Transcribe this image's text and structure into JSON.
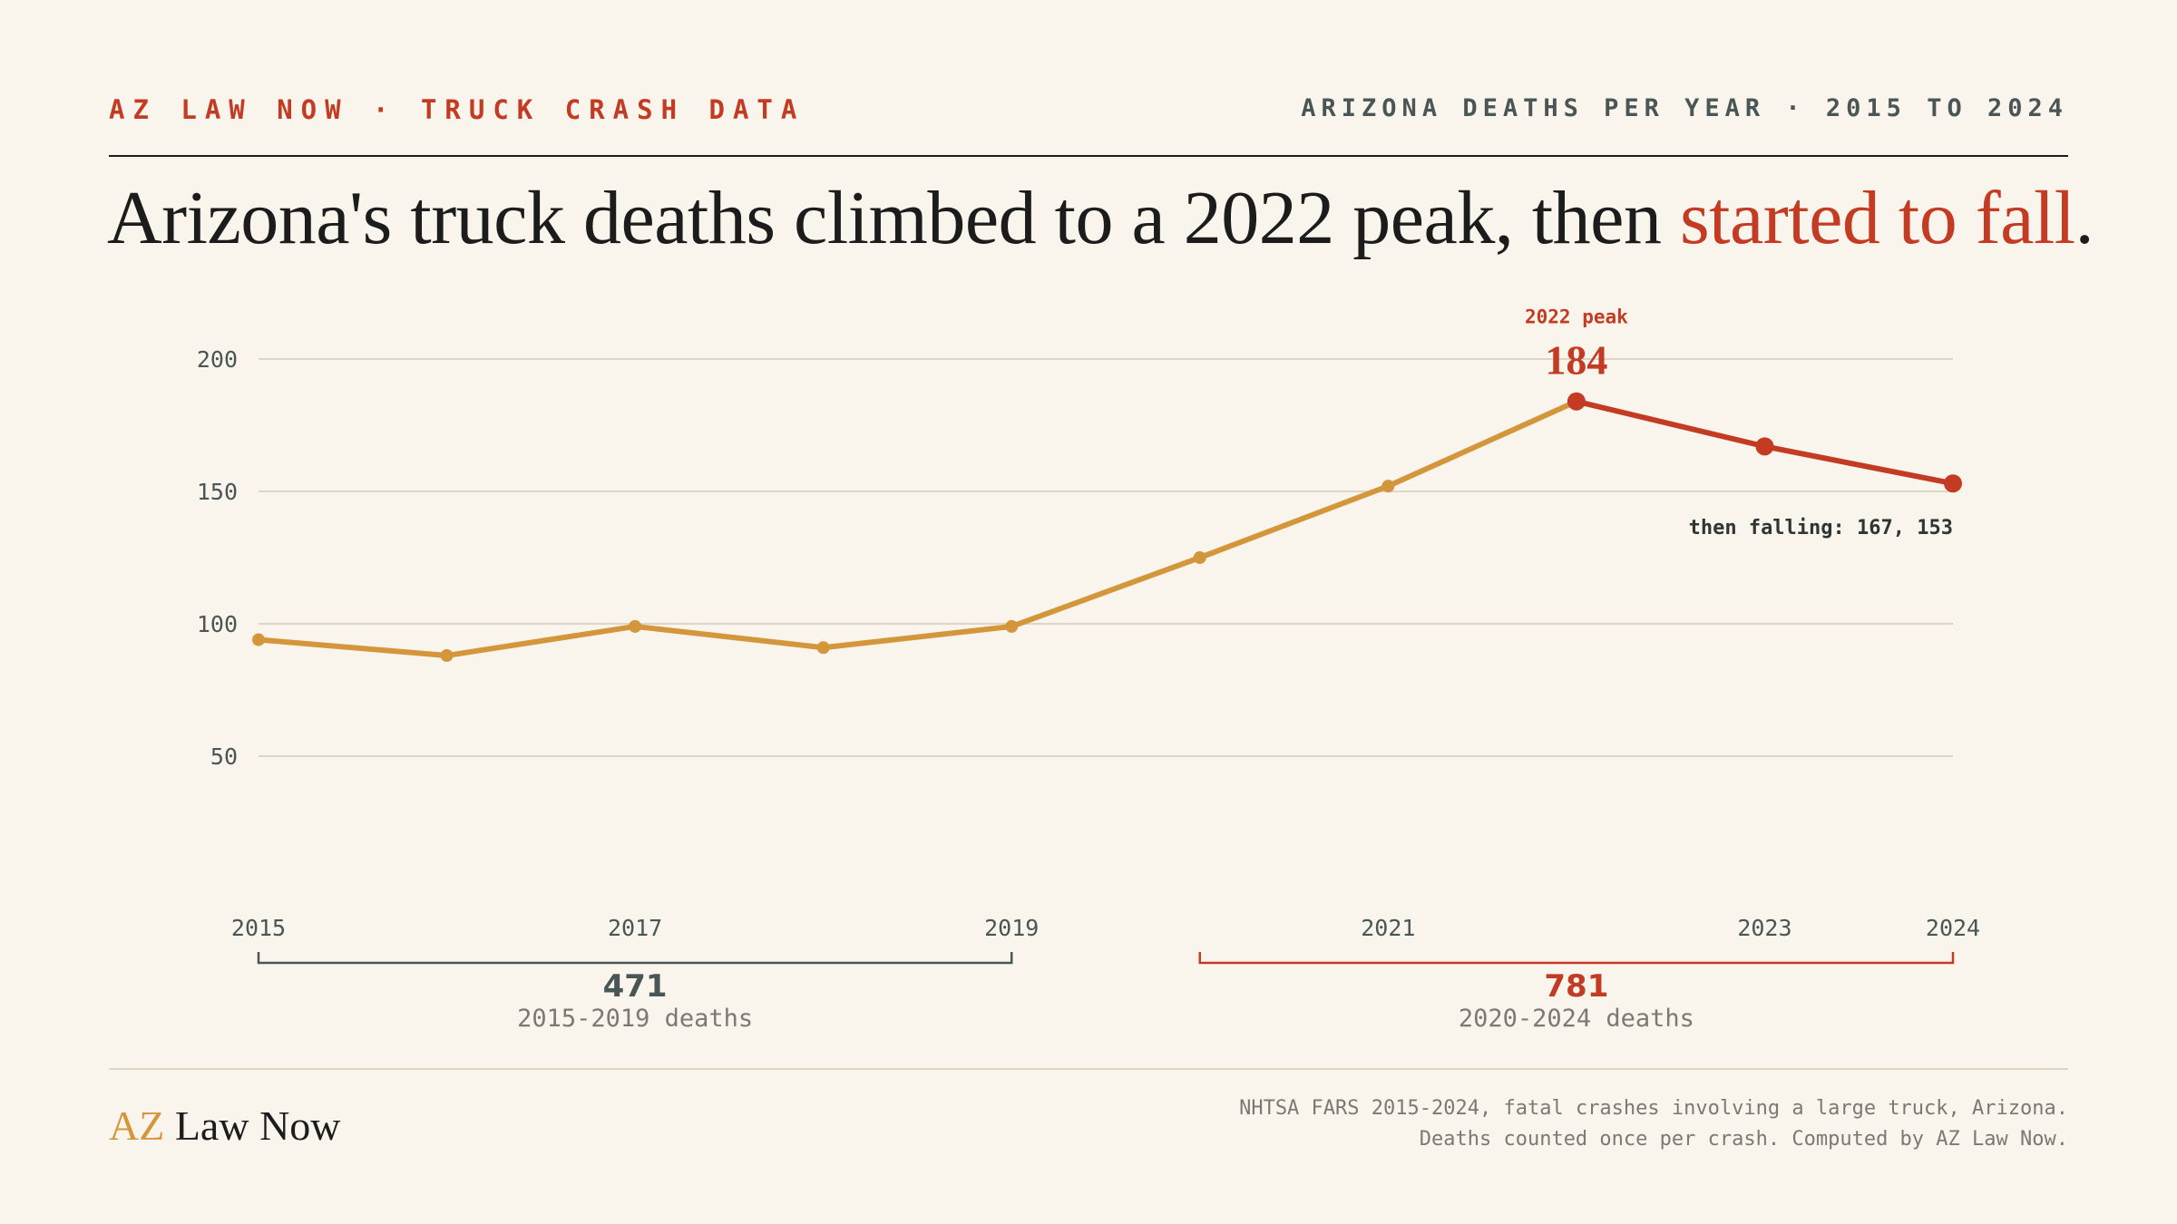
{
  "header": {
    "kicker_left": "AZ LAW NOW · TRUCK CRASH DATA",
    "kicker_right": "ARIZONA DEATHS PER YEAR · 2015 TO 2024"
  },
  "headline": {
    "main": "Arizona's truck deaths climbed to a 2022 peak, then ",
    "accent": "started to fall",
    "end": "."
  },
  "colors": {
    "background": "#faf5ec",
    "rising": "#d4963a",
    "falling": "#c23b22",
    "grid": "#ddd5c6",
    "ink": "#1c1c1c",
    "muted": "#4a5656"
  },
  "chart_data": {
    "type": "line",
    "title": "",
    "xlabel": "",
    "ylabel": "",
    "x": [
      2015,
      2016,
      2017,
      2018,
      2019,
      2020,
      2021,
      2022,
      2023,
      2024
    ],
    "values": [
      94,
      88,
      99,
      91,
      99,
      125,
      152,
      184,
      167,
      153
    ],
    "ylim": [
      50,
      200
    ],
    "yticks": [
      50,
      100,
      150,
      200
    ],
    "xtick_labels": [
      "2015",
      "2017",
      "2019",
      "2021",
      "2023",
      "2024"
    ],
    "grid": true,
    "legend": "none",
    "peak_annotation": {
      "year": "2022",
      "label": "2022 peak",
      "value": "184"
    },
    "falling_annotation": "then falling: 167, 153",
    "periods": [
      {
        "start": 2015,
        "end": 2019,
        "total": "471",
        "label": "2015-2019 deaths",
        "color": "#4a5656"
      },
      {
        "start": 2020,
        "end": 2024,
        "total": "781",
        "label": "2020-2024 deaths",
        "color": "#c23b22"
      }
    ]
  },
  "footer": {
    "logo_az": "AZ",
    "logo_rest": " Law Now",
    "source_line1": "NHTSA FARS 2015-2024, fatal crashes involving a large truck, Arizona.",
    "source_line2": "Deaths counted once per crash. Computed by AZ Law Now."
  }
}
